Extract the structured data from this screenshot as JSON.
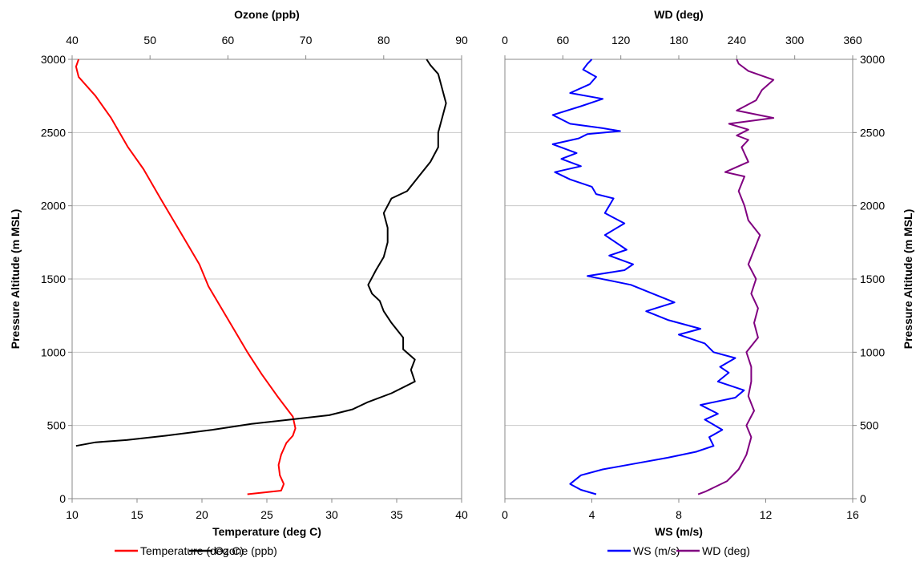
{
  "chart_data": [
    {
      "type": "line",
      "x_bottom": {
        "label": "Temperature (deg C)",
        "range": [
          10,
          40
        ],
        "ticks": [
          "10",
          "15",
          "20",
          "25",
          "30",
          "35",
          "40"
        ]
      },
      "x_top": {
        "label": "Ozone (ppb)",
        "range": [
          40,
          90
        ],
        "ticks": [
          "40",
          "50",
          "60",
          "70",
          "80",
          "90"
        ]
      },
      "y": {
        "label": "Pressure Altitude (m MSL)",
        "range": [
          0,
          3000
        ],
        "ticks": [
          "0",
          "500",
          "1000",
          "1500",
          "2000",
          "2500",
          "3000"
        ]
      },
      "grid": "horizontal",
      "legend_position": "bottom",
      "series": [
        {
          "name": "Temperature (deg C)",
          "axis": "bottom",
          "color": "#ff0000",
          "points": [
            [
              23.5,
              30
            ],
            [
              26.1,
              55
            ],
            [
              26.3,
              100
            ],
            [
              26.0,
              160
            ],
            [
              25.9,
              230
            ],
            [
              26.1,
              300
            ],
            [
              26.5,
              380
            ],
            [
              27.0,
              430
            ],
            [
              27.2,
              480
            ],
            [
              27.0,
              560
            ],
            [
              25.8,
              700
            ],
            [
              24.6,
              850
            ],
            [
              23.5,
              1000
            ],
            [
              22.5,
              1150
            ],
            [
              21.5,
              1300
            ],
            [
              20.5,
              1450
            ],
            [
              19.8,
              1600
            ],
            [
              18.8,
              1750
            ],
            [
              17.8,
              1900
            ],
            [
              16.8,
              2050
            ],
            [
              15.5,
              2250
            ],
            [
              14.3,
              2400
            ],
            [
              13.0,
              2600
            ],
            [
              11.8,
              2750
            ],
            [
              10.5,
              2880
            ],
            [
              10.3,
              2950
            ],
            [
              10.5,
              3000
            ]
          ]
        },
        {
          "name": "Ozone (ppb)",
          "axis": "top",
          "color": "#000000",
          "points": [
            [
              40.5,
              360
            ],
            [
              43.0,
              385
            ],
            [
              47.0,
              400
            ],
            [
              52.0,
              430
            ],
            [
              58.0,
              470
            ],
            [
              63.0,
              510
            ],
            [
              68.0,
              540
            ],
            [
              73.0,
              570
            ],
            [
              76.0,
              610
            ],
            [
              78.0,
              660
            ],
            [
              81.0,
              720
            ],
            [
              84.0,
              800
            ],
            [
              83.5,
              880
            ],
            [
              84.0,
              950
            ],
            [
              82.5,
              1020
            ],
            [
              82.5,
              1100
            ],
            [
              81.0,
              1200
            ],
            [
              80.0,
              1280
            ],
            [
              79.5,
              1350
            ],
            [
              78.5,
              1400
            ],
            [
              78.0,
              1460
            ],
            [
              79.0,
              1560
            ],
            [
              80.0,
              1650
            ],
            [
              80.5,
              1750
            ],
            [
              80.5,
              1850
            ],
            [
              80.0,
              1950
            ],
            [
              81.0,
              2050
            ],
            [
              83.0,
              2100
            ],
            [
              84.5,
              2200
            ],
            [
              86.0,
              2300
            ],
            [
              87.0,
              2400
            ],
            [
              87.0,
              2500
            ],
            [
              87.5,
              2600
            ],
            [
              88.0,
              2700
            ],
            [
              87.5,
              2800
            ],
            [
              87.0,
              2900
            ],
            [
              86.0,
              2960
            ],
            [
              85.5,
              3000
            ]
          ]
        }
      ]
    },
    {
      "type": "line",
      "x_bottom": {
        "label": "WS (m/s)",
        "range": [
          0,
          16
        ],
        "ticks": [
          "0",
          "4",
          "8",
          "12",
          "16"
        ]
      },
      "x_top": {
        "label": "WD (deg)",
        "range": [
          0,
          360
        ],
        "ticks": [
          "0",
          "60",
          "120",
          "180",
          "240",
          "300",
          "360"
        ]
      },
      "y": {
        "label": "Pressure Altitude (m MSL)",
        "range": [
          0,
          3000
        ],
        "ticks": [
          "0",
          "500",
          "1000",
          "1500",
          "2000",
          "2500",
          "3000"
        ]
      },
      "grid": "horizontal",
      "legend_position": "bottom",
      "series": [
        {
          "name": "WS (m/s)",
          "axis": "bottom",
          "color": "#0000ff",
          "points": [
            [
              4.2,
              30
            ],
            [
              3.5,
              60
            ],
            [
              3.0,
              100
            ],
            [
              3.5,
              160
            ],
            [
              4.5,
              200
            ],
            [
              6.0,
              240
            ],
            [
              7.5,
              280
            ],
            [
              8.8,
              320
            ],
            [
              9.6,
              360
            ],
            [
              9.4,
              420
            ],
            [
              10.0,
              470
            ],
            [
              9.2,
              540
            ],
            [
              9.8,
              580
            ],
            [
              9.0,
              640
            ],
            [
              10.6,
              690
            ],
            [
              11.0,
              740
            ],
            [
              9.8,
              800
            ],
            [
              10.3,
              860
            ],
            [
              9.9,
              900
            ],
            [
              10.6,
              960
            ],
            [
              9.6,
              1000
            ],
            [
              9.2,
              1060
            ],
            [
              8.0,
              1120
            ],
            [
              9.0,
              1160
            ],
            [
              7.5,
              1220
            ],
            [
              6.5,
              1280
            ],
            [
              7.8,
              1340
            ],
            [
              6.8,
              1400
            ],
            [
              5.8,
              1460
            ],
            [
              3.8,
              1520
            ],
            [
              5.5,
              1560
            ],
            [
              5.9,
              1600
            ],
            [
              4.8,
              1660
            ],
            [
              5.6,
              1700
            ],
            [
              4.6,
              1800
            ],
            [
              5.5,
              1880
            ],
            [
              4.6,
              1950
            ],
            [
              5.0,
              2050
            ],
            [
              4.2,
              2080
            ],
            [
              4.0,
              2130
            ],
            [
              3.0,
              2180
            ],
            [
              2.3,
              2230
            ],
            [
              3.5,
              2270
            ],
            [
              2.6,
              2320
            ],
            [
              3.3,
              2360
            ],
            [
              2.2,
              2420
            ],
            [
              3.4,
              2460
            ],
            [
              3.8,
              2490
            ],
            [
              5.3,
              2510
            ],
            [
              4.5,
              2530
            ],
            [
              3.0,
              2560
            ],
            [
              2.2,
              2620
            ],
            [
              3.5,
              2680
            ],
            [
              4.5,
              2730
            ],
            [
              3.0,
              2770
            ],
            [
              3.9,
              2830
            ],
            [
              4.2,
              2880
            ],
            [
              3.6,
              2930
            ],
            [
              3.8,
              2970
            ],
            [
              4.0,
              3000
            ]
          ]
        },
        {
          "name": "WD (deg)",
          "axis": "top",
          "color": "#800080",
          "points": [
            [
              200,
              30
            ],
            [
              208,
              50
            ],
            [
              230,
              120
            ],
            [
              242,
              200
            ],
            [
              250,
              300
            ],
            [
              255,
              420
            ],
            [
              250,
              500
            ],
            [
              258,
              600
            ],
            [
              252,
              700
            ],
            [
              255,
              800
            ],
            [
              255,
              900
            ],
            [
              250,
              1000
            ],
            [
              262,
              1100
            ],
            [
              258,
              1200
            ],
            [
              262,
              1300
            ],
            [
              255,
              1400
            ],
            [
              260,
              1500
            ],
            [
              252,
              1600
            ],
            [
              264,
              1800
            ],
            [
              252,
              1900
            ],
            [
              248,
              2000
            ],
            [
              242,
              2100
            ],
            [
              248,
              2200
            ],
            [
              228,
              2230
            ],
            [
              252,
              2300
            ],
            [
              245,
              2400
            ],
            [
              252,
              2450
            ],
            [
              240,
              2480
            ],
            [
              252,
              2520
            ],
            [
              232,
              2560
            ],
            [
              278,
              2600
            ],
            [
              240,
              2650
            ],
            [
              260,
              2720
            ],
            [
              266,
              2790
            ],
            [
              278,
              2860
            ],
            [
              252,
              2920
            ],
            [
              242,
              2970
            ],
            [
              240,
              3000
            ]
          ]
        }
      ]
    }
  ]
}
